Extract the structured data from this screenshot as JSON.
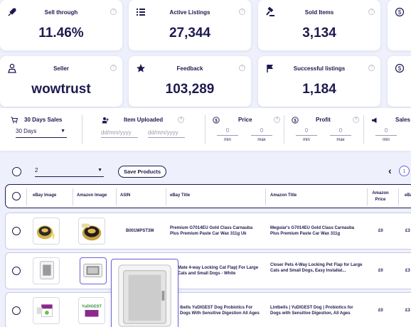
{
  "stats": [
    {
      "label": "Sell through",
      "value": "11.46%",
      "icon": "rocket-icon"
    },
    {
      "label": "Active Listings",
      "value": "27,344",
      "icon": "list-icon"
    },
    {
      "label": "Sold Items",
      "value": "3,134",
      "icon": "gavel-icon"
    },
    {
      "label": "",
      "value": "",
      "icon": "dollar-icon"
    },
    {
      "label": "Seller",
      "value": "wowtrust",
      "icon": "user-icon"
    },
    {
      "label": "Feedback",
      "value": "103,289",
      "icon": "star-icon"
    },
    {
      "label": "Successful listings",
      "value": "1,184",
      "icon": "flag-icon"
    },
    {
      "label": "",
      "value": "",
      "icon": "dollar-icon"
    }
  ],
  "info_glyph": "?",
  "filters": {
    "sales": {
      "label": "30 Days Sales",
      "value": "30 Days"
    },
    "uploaded": {
      "label": "Item Uploaded",
      "from_placeholder": "dd/mm/yyyy",
      "to_placeholder": "dd/mm/yyyy"
    },
    "price": {
      "label": "Price",
      "min": "0",
      "max": "0",
      "min_label": "min",
      "max_label": "max"
    },
    "profit": {
      "label": "Profit",
      "min": "0",
      "max": "0",
      "min_label": "min",
      "max_label": "max"
    },
    "sales2": {
      "label": "Sales",
      "min": "0",
      "min_label": "min"
    }
  },
  "toolbar": {
    "page_size": "2",
    "save_label": "Save Products",
    "page": "1",
    "prev": "‹"
  },
  "table": {
    "headers": [
      "eBay Image",
      "Amazon Image",
      "ASIN",
      "eBay Title",
      "Amazon Title",
      "Amazon Price",
      "eBay"
    ],
    "rows": [
      {
        "asin": "B001MPST3M",
        "ebay_title": "Premium G7014EU Gold Class Carnauba Plus Premium Paste Car Wax 311g Uk",
        "amazon_title": "Meguiar's G7014EU Gold Class Carnauba Plus Premium Paste Car Wax 311g",
        "amazon_price": "£0",
        "ebay_price": "£3"
      },
      {
        "asin": "",
        "ebay_title": "Mate 4-way Locking Cat Flap| For Large Cats and Small Dogs - White",
        "amazon_title": "Closer Pets 4-Way Locking Pet Flap for Large Cats and Small Dogs, Easy Installat...",
        "amazon_price": "£0",
        "ebay_price": "£3"
      },
      {
        "asin": "",
        "ebay_title": "lbells YuDIGEST Dog Probiotics For Dogs With Sensitive Digestion All Ages",
        "amazon_title": "Lintbells | YuDIGEST Dog | Probiotics for Dogs with Sensitive Digestion, All Ages",
        "amazon_price": "£0",
        "ebay_price": "£3"
      }
    ]
  },
  "product_label": "YuDIGEST",
  "colors": {
    "primary": "#1d1a4f",
    "accent": "#6b62d8",
    "background": "#eef1fb"
  }
}
